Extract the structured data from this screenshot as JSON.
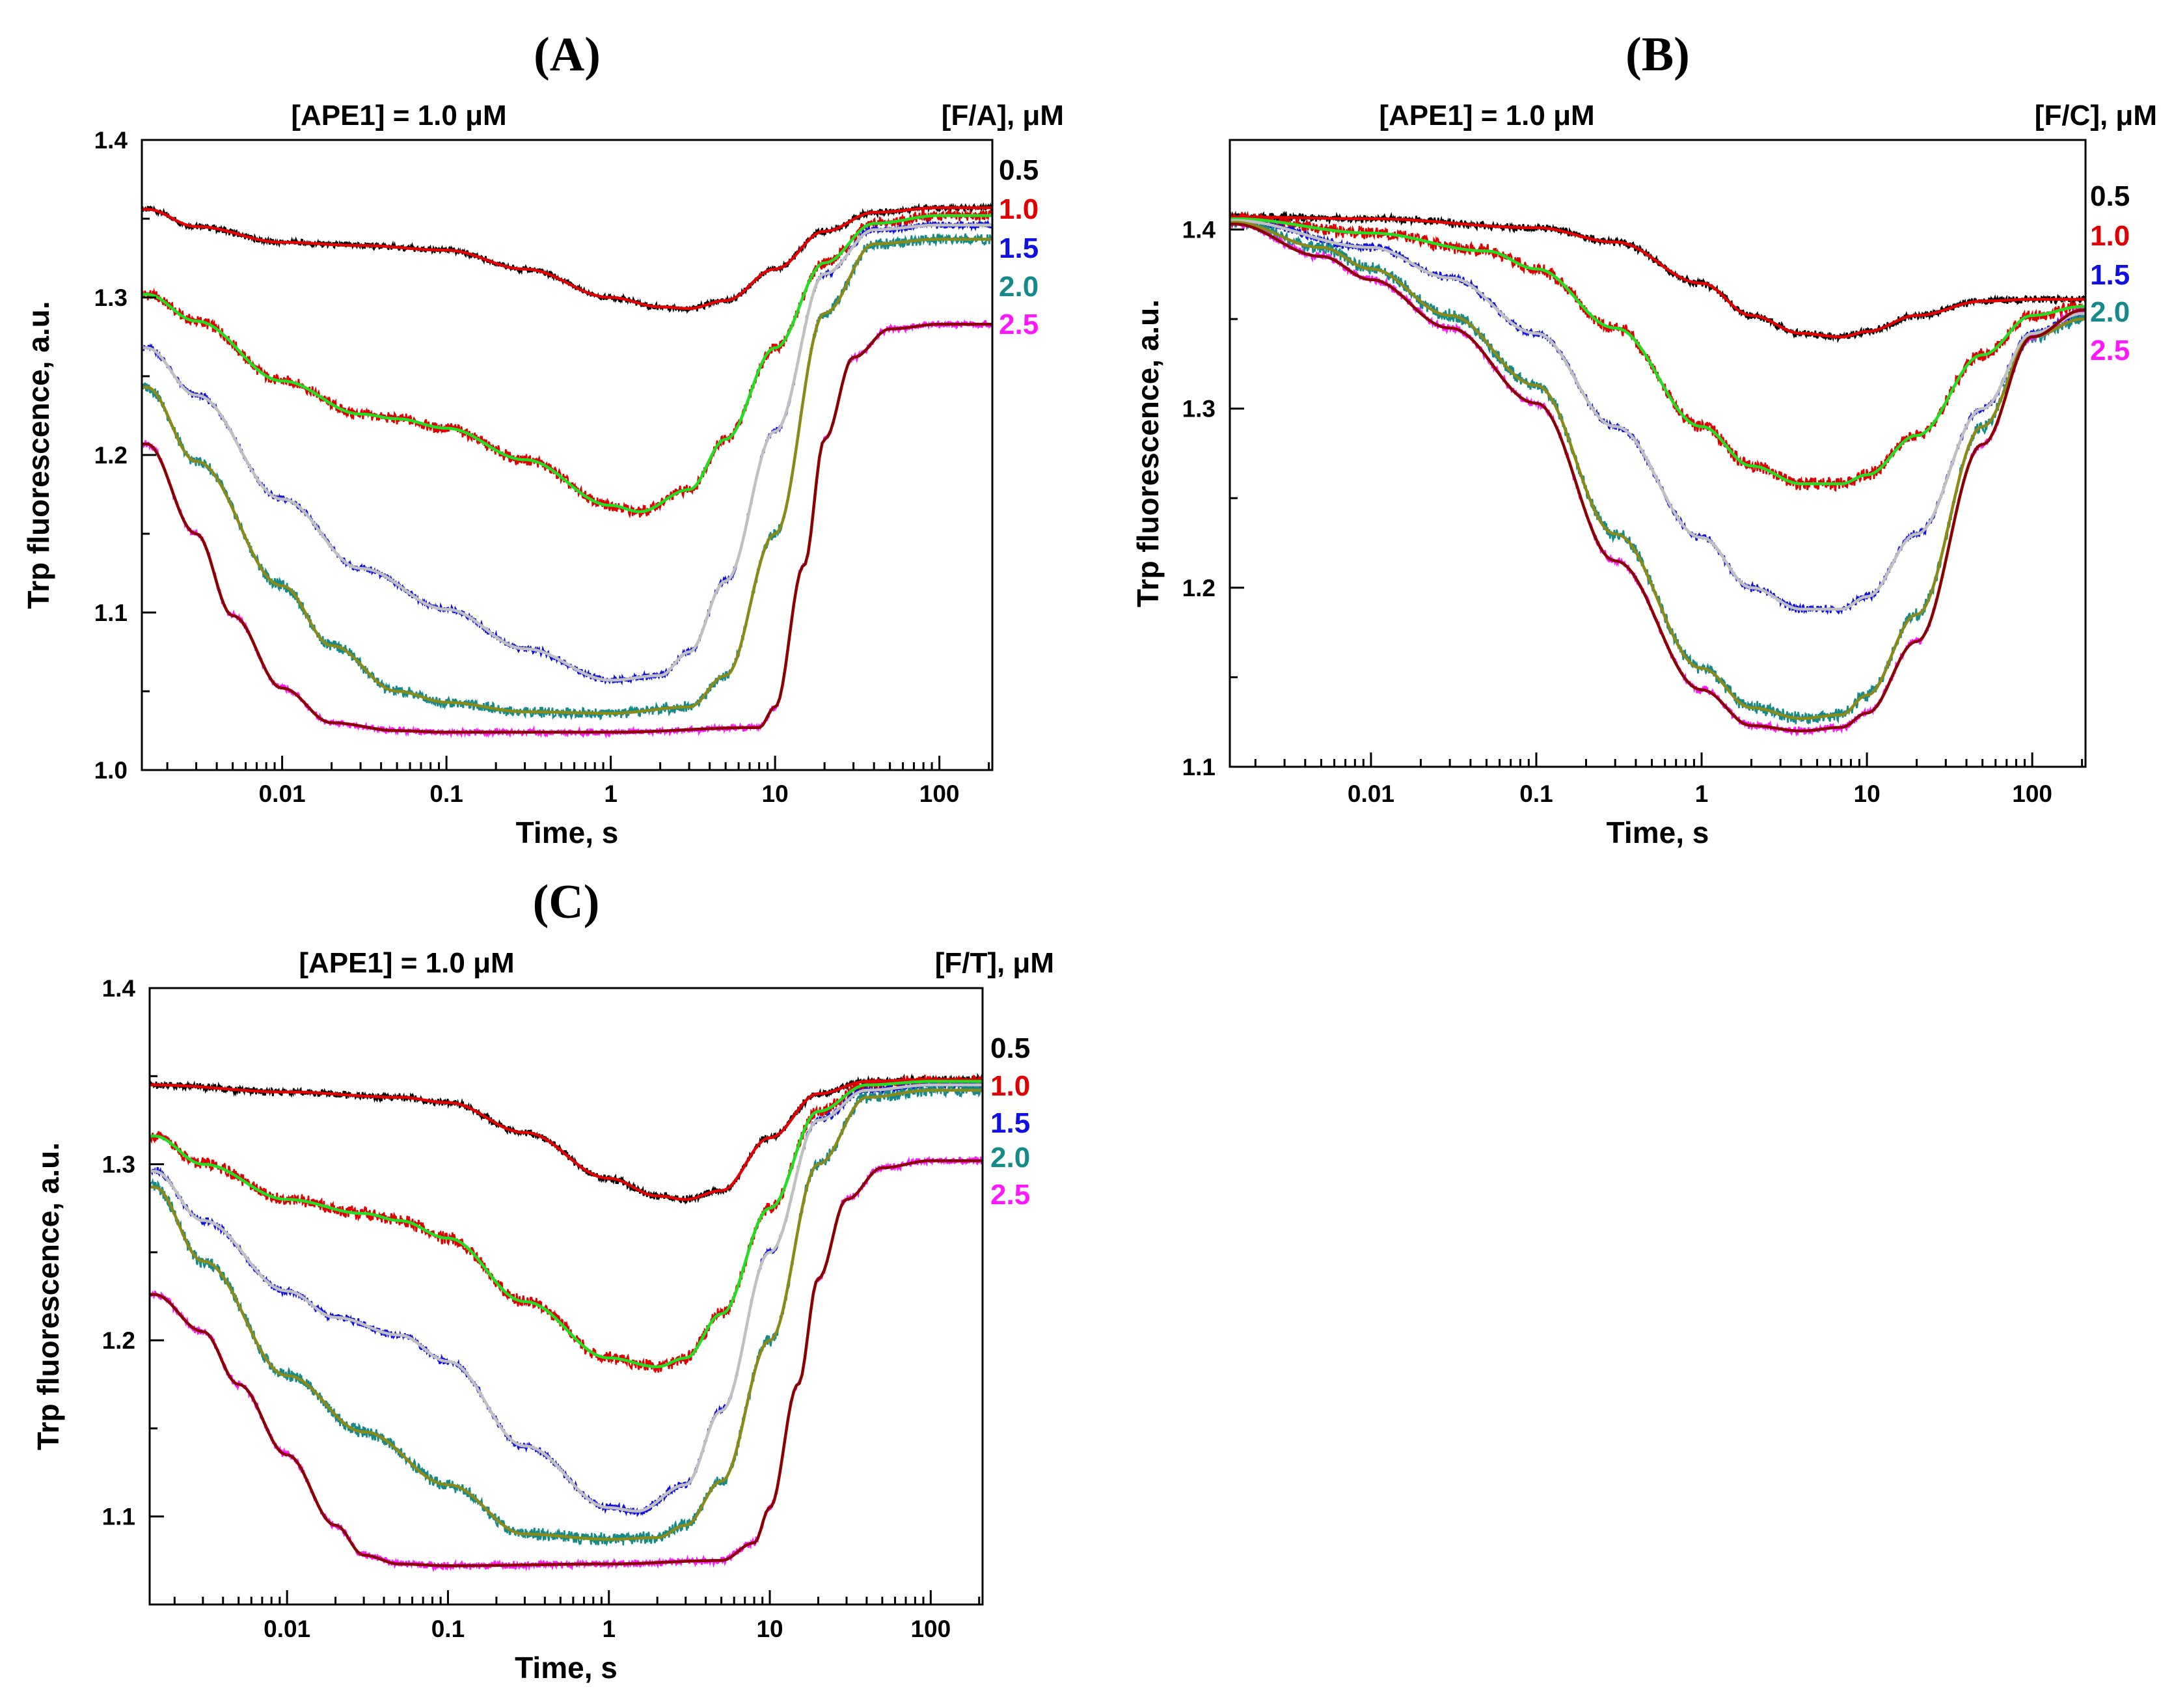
{
  "chart_data": [
    {
      "type": "line",
      "panel": "(A)",
      "title": "[APE1] = 1.0 μM",
      "legend_title": "[F/A], μM",
      "xlabel": "Time, s",
      "ylabel": "Trp fluorescence, a.u.",
      "xscale": "log",
      "xlim": [
        0.0014,
        210
      ],
      "ylim": [
        1.0,
        1.4
      ],
      "xticks": [
        {
          "value": 0.01,
          "label": "0.01"
        },
        {
          "value": 0.1,
          "label": "0.1"
        },
        {
          "value": 1,
          "label": "1"
        },
        {
          "value": 10,
          "label": "10"
        },
        {
          "value": 100,
          "label": "100"
        }
      ],
      "yticks": [
        {
          "value": 1.0,
          "label": "1.0"
        },
        {
          "value": 1.1,
          "label": "1.1"
        },
        {
          "value": 1.2,
          "label": "1.2"
        },
        {
          "value": 1.3,
          "label": "1.3"
        },
        {
          "value": 1.4,
          "label": "1.4"
        }
      ],
      "legend_placement": "right",
      "grid": false,
      "series": [
        {
          "name": "0.5",
          "color": "#000000",
          "fit_color": "#e00000",
          "x": [
            0.0015,
            0.003,
            0.01,
            0.03,
            0.1,
            0.3,
            1,
            2,
            3,
            5,
            10,
            20,
            40,
            100,
            200
          ],
          "y": [
            1.356,
            1.345,
            1.335,
            1.333,
            1.33,
            1.318,
            1.3,
            1.294,
            1.293,
            1.298,
            1.318,
            1.342,
            1.354,
            1.357,
            1.357
          ]
        },
        {
          "name": "1.0",
          "color": "#e00000",
          "fit_color": "#22dd22",
          "x": [
            0.0015,
            0.003,
            0.01,
            0.03,
            0.05,
            0.1,
            0.3,
            1,
            1.5,
            3,
            5,
            10,
            20,
            40,
            100,
            200
          ],
          "y": [
            1.302,
            1.285,
            1.247,
            1.226,
            1.223,
            1.217,
            1.197,
            1.168,
            1.164,
            1.178,
            1.21,
            1.268,
            1.322,
            1.347,
            1.352,
            1.352
          ]
        },
        {
          "name": "1.5",
          "color": "#1010e0",
          "fit_color": "#c0c0c0",
          "x": [
            0.0015,
            0.003,
            0.01,
            0.03,
            0.1,
            0.3,
            1,
            2,
            3,
            5,
            10,
            20,
            40,
            100,
            200
          ],
          "y": [
            1.268,
            1.238,
            1.172,
            1.128,
            1.102,
            1.077,
            1.057,
            1.06,
            1.075,
            1.12,
            1.215,
            1.315,
            1.343,
            1.346,
            1.346
          ]
        },
        {
          "name": "2.0",
          "color": "#148a8a",
          "fit_color": "#8a8a18",
          "x": [
            0.0015,
            0.003,
            0.01,
            0.02,
            0.05,
            0.1,
            0.3,
            1,
            3,
            5,
            10,
            20,
            40,
            100,
            200
          ],
          "y": [
            1.243,
            1.196,
            1.117,
            1.079,
            1.05,
            1.043,
            1.037,
            1.036,
            1.04,
            1.06,
            1.15,
            1.29,
            1.334,
            1.337,
            1.337
          ]
        },
        {
          "name": "2.5",
          "color": "#ff18ff",
          "fit_color": "#8b0000",
          "x": [
            0.0015,
            0.003,
            0.005,
            0.01,
            0.02,
            0.05,
            0.1,
            1,
            8,
            10,
            15,
            20,
            30,
            50,
            100,
            200
          ],
          "y": [
            1.207,
            1.15,
            1.098,
            1.052,
            1.03,
            1.025,
            1.024,
            1.024,
            1.027,
            1.04,
            1.13,
            1.21,
            1.262,
            1.28,
            1.283,
            1.283
          ]
        }
      ]
    },
    {
      "type": "line",
      "panel": "(B)",
      "title": "[APE1] = 1.0 μM",
      "legend_title": "[F/C], μM",
      "xlabel": "Time, s",
      "ylabel": "Trp fluorescence, a.u.",
      "xscale": "log",
      "xlim": [
        0.0014,
        210
      ],
      "ylim": [
        1.1,
        1.45
      ],
      "xticks": [
        {
          "value": 0.01,
          "label": "0.01"
        },
        {
          "value": 0.1,
          "label": "0.1"
        },
        {
          "value": 1,
          "label": "1"
        },
        {
          "value": 10,
          "label": "10"
        },
        {
          "value": 100,
          "label": "100"
        }
      ],
      "yticks": [
        {
          "value": 1.1,
          "label": "1.1"
        },
        {
          "value": 1.2,
          "label": "1.2"
        },
        {
          "value": 1.3,
          "label": "1.3"
        },
        {
          "value": 1.4,
          "label": "1.4"
        }
      ],
      "legend_placement": "right",
      "grid": false,
      "series": [
        {
          "name": "0.5",
          "color": "#000000",
          "fit_color": "#e00000",
          "x": [
            0.0015,
            0.01,
            0.1,
            0.3,
            1,
            2,
            4,
            7,
            10,
            20,
            50,
            100,
            200
          ],
          "y": [
            1.407,
            1.406,
            1.401,
            1.393,
            1.37,
            1.352,
            1.342,
            1.34,
            1.343,
            1.352,
            1.36,
            1.361,
            1.361
          ]
        },
        {
          "name": "1.0",
          "color": "#e00000",
          "fit_color": "#22dd22",
          "x": [
            0.0015,
            0.01,
            0.05,
            0.1,
            0.3,
            1,
            2,
            4,
            7,
            10,
            20,
            50,
            100,
            200
          ],
          "y": [
            1.406,
            1.398,
            1.388,
            1.378,
            1.345,
            1.29,
            1.268,
            1.258,
            1.258,
            1.263,
            1.285,
            1.33,
            1.352,
            1.357
          ]
        },
        {
          "name": "1.5",
          "color": "#1010e0",
          "fit_color": "#c0c0c0",
          "x": [
            0.0015,
            0.01,
            0.03,
            0.1,
            0.3,
            1,
            2,
            4,
            7,
            10,
            20,
            50,
            100,
            200
          ],
          "y": [
            1.405,
            1.39,
            1.373,
            1.342,
            1.29,
            1.228,
            1.2,
            1.188,
            1.188,
            1.195,
            1.23,
            1.3,
            1.342,
            1.353
          ]
        },
        {
          "name": "2.0",
          "color": "#148a8a",
          "fit_color": "#8a8a18",
          "x": [
            0.0015,
            0.005,
            0.01,
            0.03,
            0.1,
            0.3,
            1,
            2,
            4,
            7,
            10,
            20,
            50,
            100,
            200
          ],
          "y": [
            1.404,
            1.39,
            1.378,
            1.352,
            1.313,
            1.23,
            1.155,
            1.133,
            1.127,
            1.129,
            1.14,
            1.185,
            1.29,
            1.34,
            1.35
          ]
        },
        {
          "name": "2.5",
          "color": "#ff18ff",
          "fit_color": "#8b0000",
          "x": [
            0.0015,
            0.005,
            0.01,
            0.03,
            0.1,
            0.3,
            1,
            2,
            4,
            7,
            10,
            20,
            50,
            100,
            200
          ],
          "y": [
            1.403,
            1.385,
            1.372,
            1.345,
            1.303,
            1.215,
            1.143,
            1.123,
            1.12,
            1.122,
            1.13,
            1.17,
            1.28,
            1.34,
            1.355
          ]
        }
      ]
    },
    {
      "type": "line",
      "panel": "(C)",
      "title": "[APE1] = 1.0 μM",
      "legend_title": "[F/T], μM",
      "xlabel": "Time, s",
      "ylabel": "Trp fluorescence, a.u.",
      "xscale": "log",
      "xlim": [
        0.0014,
        210
      ],
      "ylim": [
        1.05,
        1.4
      ],
      "xticks": [
        {
          "value": 0.01,
          "label": "0.01"
        },
        {
          "value": 0.1,
          "label": "0.1"
        },
        {
          "value": 1,
          "label": "1"
        },
        {
          "value": 10,
          "label": "10"
        },
        {
          "value": 100,
          "label": "100"
        }
      ],
      "yticks": [
        {
          "value": 1.1,
          "label": "1.1"
        },
        {
          "value": 1.2,
          "label": "1.2"
        },
        {
          "value": 1.3,
          "label": "1.3"
        },
        {
          "value": 1.4,
          "label": "1.4"
        }
      ],
      "legend_placement": "right",
      "grid": false,
      "series": [
        {
          "name": "0.5",
          "color": "#000000",
          "fit_color": "#e00000",
          "x": [
            0.0015,
            0.01,
            0.05,
            0.1,
            0.3,
            1,
            2,
            3,
            5,
            10,
            20,
            40,
            100,
            200
          ],
          "y": [
            1.345,
            1.341,
            1.338,
            1.335,
            1.318,
            1.292,
            1.282,
            1.28,
            1.285,
            1.315,
            1.34,
            1.347,
            1.348,
            1.348
          ]
        },
        {
          "name": "1.0",
          "color": "#e00000",
          "fit_color": "#22dd22",
          "x": [
            0.0015,
            0.003,
            0.01,
            0.03,
            0.05,
            0.1,
            0.3,
            1,
            2,
            3,
            5,
            10,
            20,
            40,
            100,
            200
          ],
          "y": [
            1.316,
            1.3,
            1.28,
            1.272,
            1.268,
            1.258,
            1.222,
            1.19,
            1.185,
            1.19,
            1.215,
            1.275,
            1.33,
            1.345,
            1.347,
            1.347
          ]
        },
        {
          "name": "1.5",
          "color": "#1010e0",
          "fit_color": "#c0c0c0",
          "x": [
            0.0015,
            0.003,
            0.01,
            0.02,
            0.05,
            0.1,
            0.3,
            1,
            1.5,
            3,
            5,
            10,
            20,
            40,
            100,
            200
          ],
          "y": [
            1.296,
            1.268,
            1.228,
            1.213,
            1.203,
            1.188,
            1.14,
            1.105,
            1.103,
            1.118,
            1.16,
            1.25,
            1.325,
            1.342,
            1.345,
            1.345
          ]
        },
        {
          "name": "2.0",
          "color": "#148a8a",
          "fit_color": "#8a8a18",
          "x": [
            0.0015,
            0.003,
            0.01,
            0.03,
            0.1,
            0.3,
            1,
            2,
            3,
            5,
            10,
            20,
            40,
            100,
            200
          ],
          "y": [
            1.287,
            1.245,
            1.18,
            1.148,
            1.118,
            1.09,
            1.087,
            1.088,
            1.095,
            1.12,
            1.2,
            1.3,
            1.338,
            1.342,
            1.342
          ]
        },
        {
          "name": "2.5",
          "color": "#ff18ff",
          "fit_color": "#8b0000",
          "x": [
            0.0015,
            0.003,
            0.005,
            0.01,
            0.02,
            0.03,
            0.05,
            0.1,
            1,
            5,
            8,
            10,
            15,
            20,
            30,
            50,
            100,
            200
          ],
          "y": [
            1.226,
            1.205,
            1.175,
            1.135,
            1.095,
            1.078,
            1.073,
            1.072,
            1.073,
            1.075,
            1.085,
            1.105,
            1.175,
            1.235,
            1.28,
            1.298,
            1.302,
            1.302
          ]
        }
      ]
    }
  ]
}
